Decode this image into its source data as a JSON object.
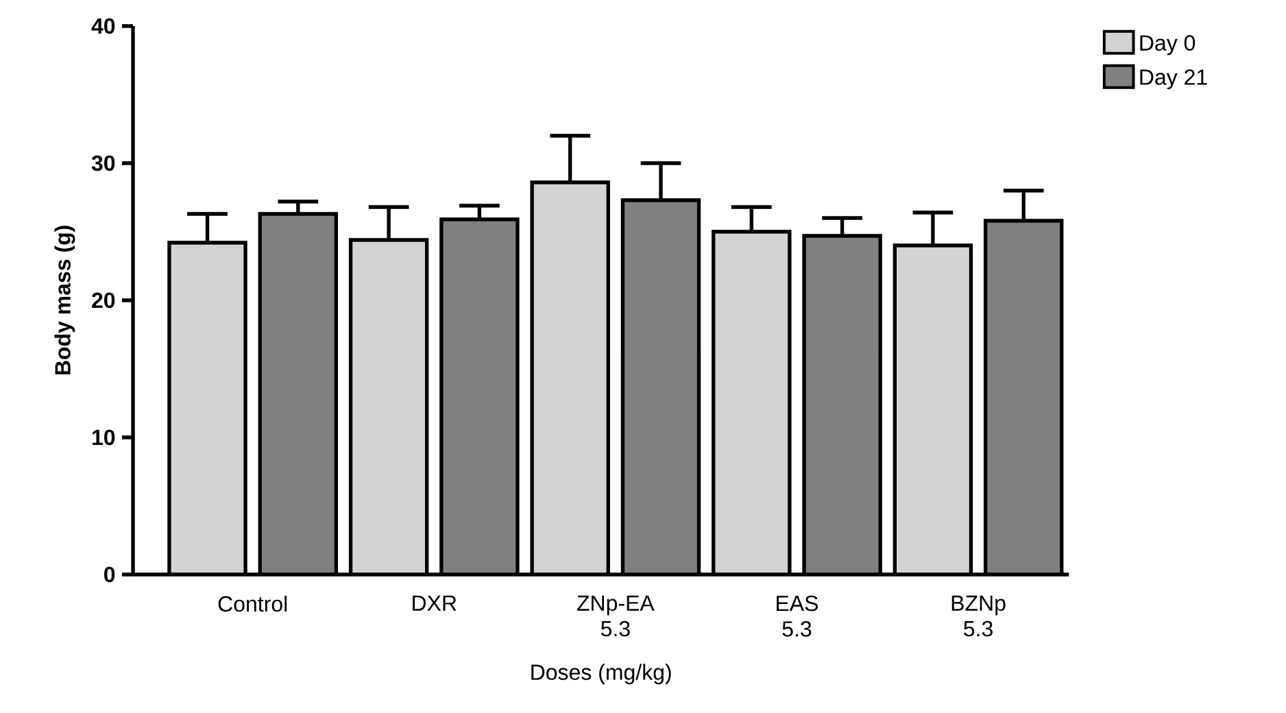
{
  "chart_data": {
    "type": "bar",
    "xlabel": "Doses (mg/kg)",
    "ylabel": "Body mass (g)",
    "categories": [
      "Control",
      "DXR",
      "ZNp-EA 5.3",
      "EAS 5.3",
      "BZNp 5.3"
    ],
    "series": [
      {
        "name": "Day 0",
        "color": "#d3d3d3",
        "values": [
          24.2,
          24.4,
          28.6,
          25.0,
          24.0
        ],
        "errors": [
          [
            24.2,
            26.3
          ],
          [
            24.4,
            26.8
          ],
          [
            28.6,
            32.0
          ],
          [
            25.0,
            26.8
          ],
          [
            24.0,
            26.4
          ]
        ]
      },
      {
        "name": "Day 21",
        "color": "#808080",
        "values": [
          26.3,
          25.9,
          27.3,
          24.7,
          25.8
        ],
        "errors": [
          [
            26.3,
            27.2
          ],
          [
            25.9,
            26.9
          ],
          [
            27.3,
            30.0
          ],
          [
            24.7,
            26.0
          ],
          [
            25.8,
            28.0
          ]
        ]
      }
    ],
    "ylim": [
      0,
      40
    ],
    "yticks": [
      0,
      10,
      20,
      30,
      40
    ],
    "grid": false,
    "legend": "top right"
  }
}
